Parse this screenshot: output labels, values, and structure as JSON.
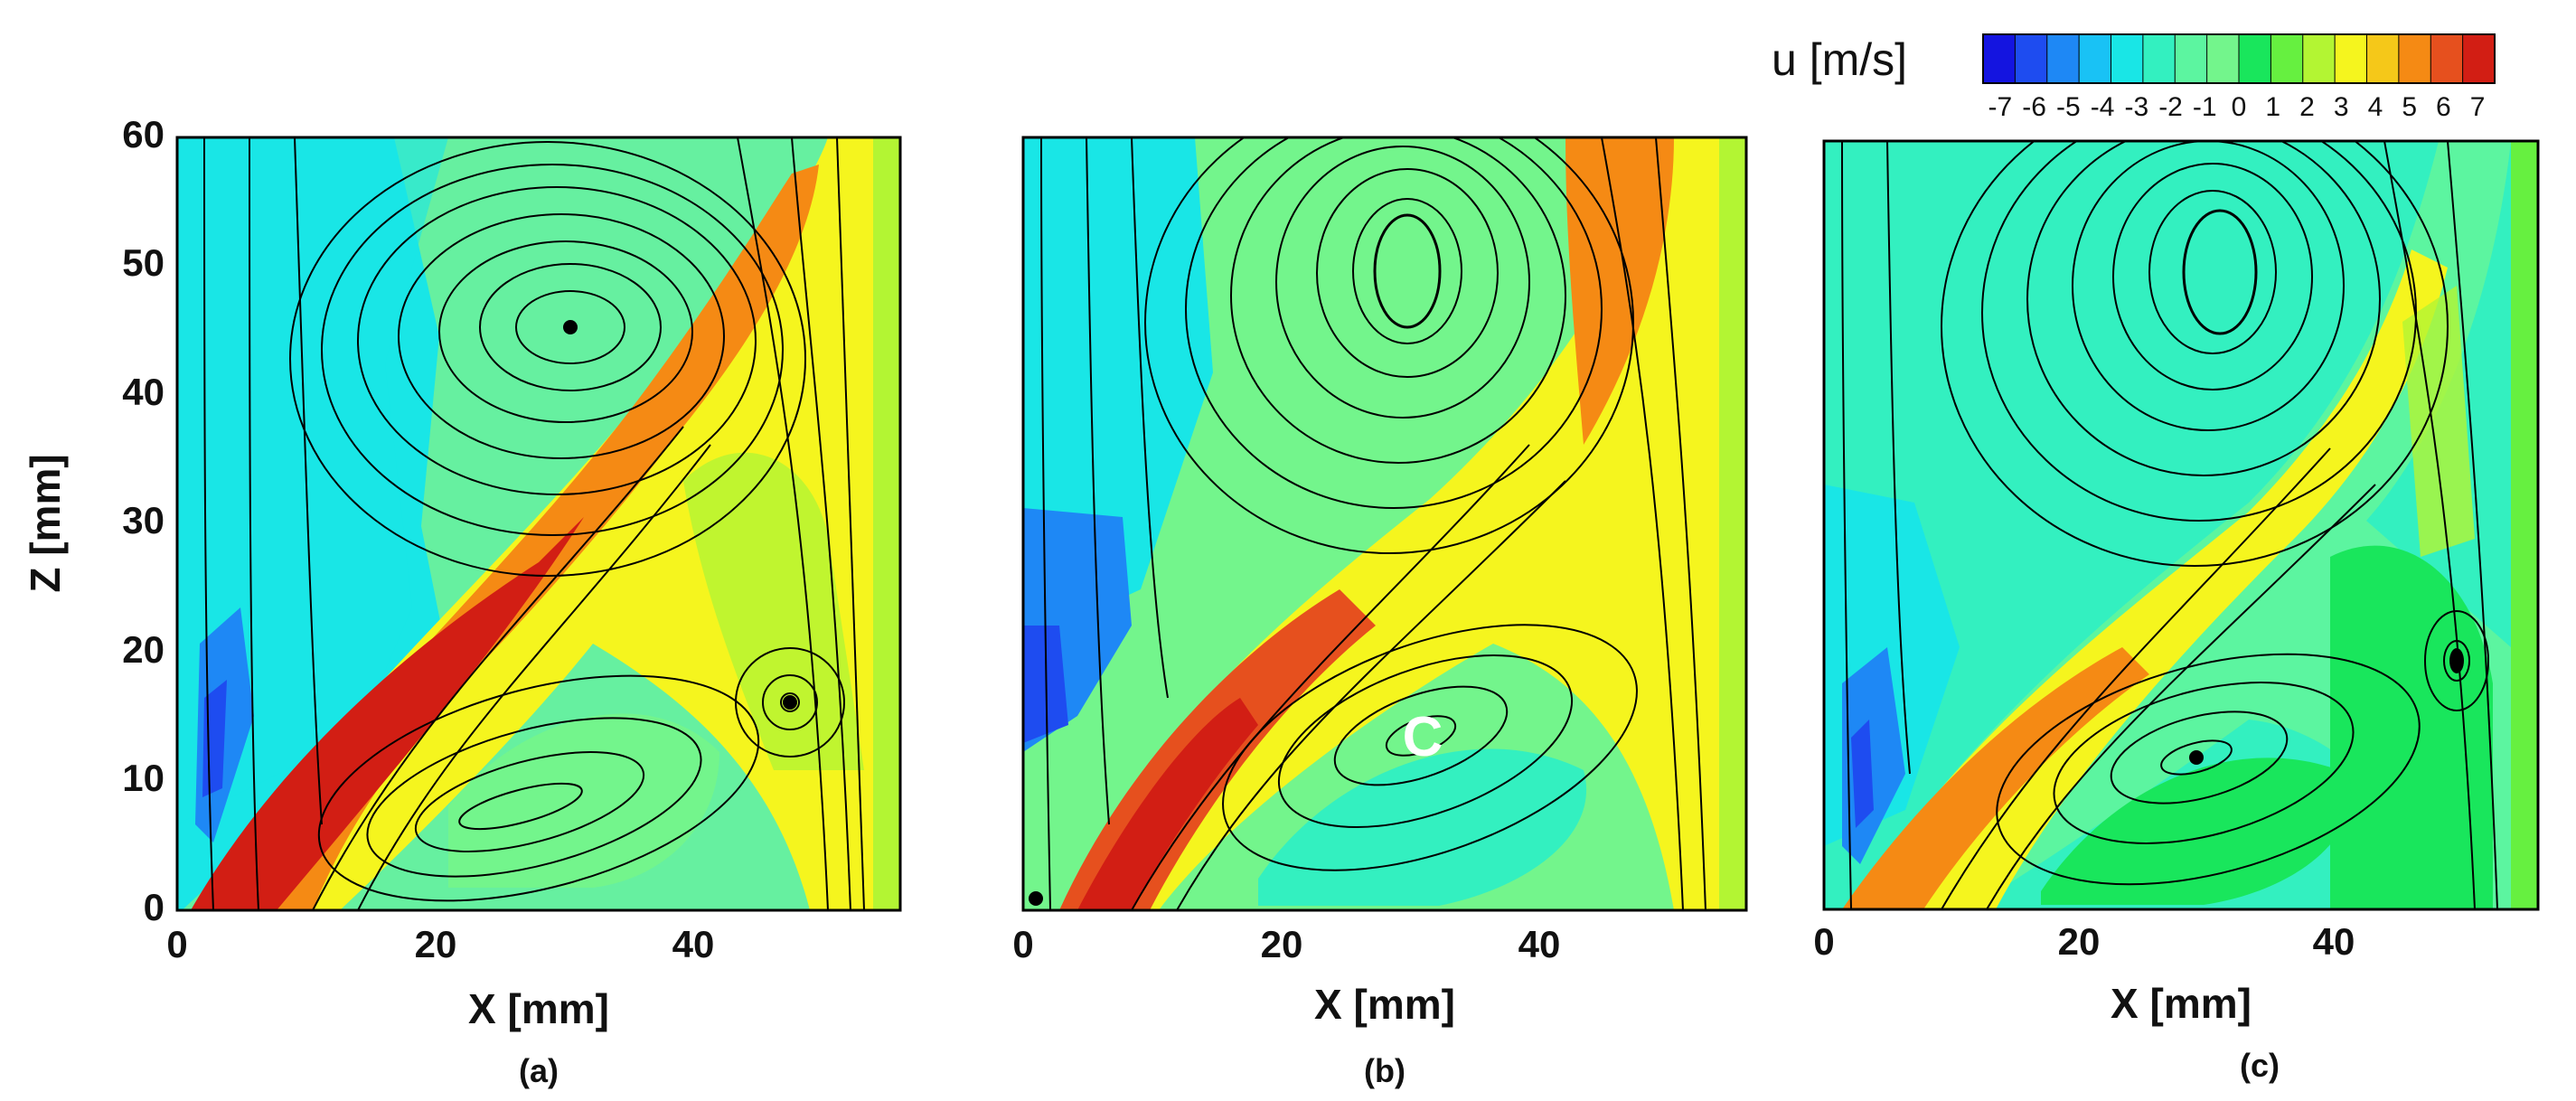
{
  "colorbar": {
    "title": "u [m/s]",
    "ticks": [
      "-7",
      "-6",
      "-5",
      "-4",
      "-3",
      "-2",
      "-1",
      "0",
      "1",
      "2",
      "3",
      "4",
      "5",
      "6",
      "7"
    ],
    "colors": [
      "#1414e0",
      "#1e4cf0",
      "#1e88f5",
      "#19c2f5",
      "#19e6e6",
      "#33f0c0",
      "#5cf5a0",
      "#73f58c",
      "#19e65c",
      "#66f040",
      "#b3f533",
      "#f5f51e",
      "#f5c819",
      "#f58a14",
      "#e6501e",
      "#d21e14"
    ]
  },
  "chart_data": [
    {
      "type": "contour",
      "panel_label": "(a)",
      "xlabel": "X [mm]",
      "ylabel": "Z [mm]",
      "xlim": [
        0,
        56
      ],
      "ylim": [
        0,
        60
      ],
      "xticks": [
        "0",
        "20",
        "40"
      ],
      "yticks": [
        "0",
        "10",
        "20",
        "30",
        "40",
        "50",
        "60"
      ],
      "field": "u [m/s]",
      "vortices": [
        {
          "x": 31,
          "z": 45,
          "kind": "primary vortex core"
        },
        {
          "x": 25,
          "z": 7.5,
          "kind": "lower recirculation"
        },
        {
          "x": 47,
          "z": 16,
          "kind": "small vortex"
        }
      ],
      "annotations": []
    },
    {
      "type": "contour",
      "panel_label": "(b)",
      "xlabel": "X [mm]",
      "ylabel": "",
      "xlim": [
        0,
        56
      ],
      "ylim": [
        0,
        60
      ],
      "xticks": [
        "0",
        "20",
        "40"
      ],
      "yticks": [],
      "field": "u [m/s]",
      "vortices": [
        {
          "x": 30,
          "z": 49,
          "kind": "primary vortex core"
        },
        {
          "x": 31,
          "z": 13,
          "kind": "lower recirculation"
        }
      ],
      "annotations": [
        {
          "text": "C",
          "x": 31,
          "z": 13
        }
      ]
    },
    {
      "type": "contour",
      "panel_label": "(c)",
      "xlabel": "X [mm]",
      "ylabel": "",
      "xlim": [
        0,
        56
      ],
      "ylim": [
        0,
        60
      ],
      "xticks": [
        "0",
        "20",
        "40"
      ],
      "yticks": [],
      "field": "u [m/s]",
      "vortices": [
        {
          "x": 31,
          "z": 49,
          "kind": "primary vortex core"
        },
        {
          "x": 29,
          "z": 12,
          "kind": "lower recirculation"
        },
        {
          "x": 49,
          "z": 19,
          "kind": "small vortex"
        }
      ],
      "annotations": []
    }
  ]
}
